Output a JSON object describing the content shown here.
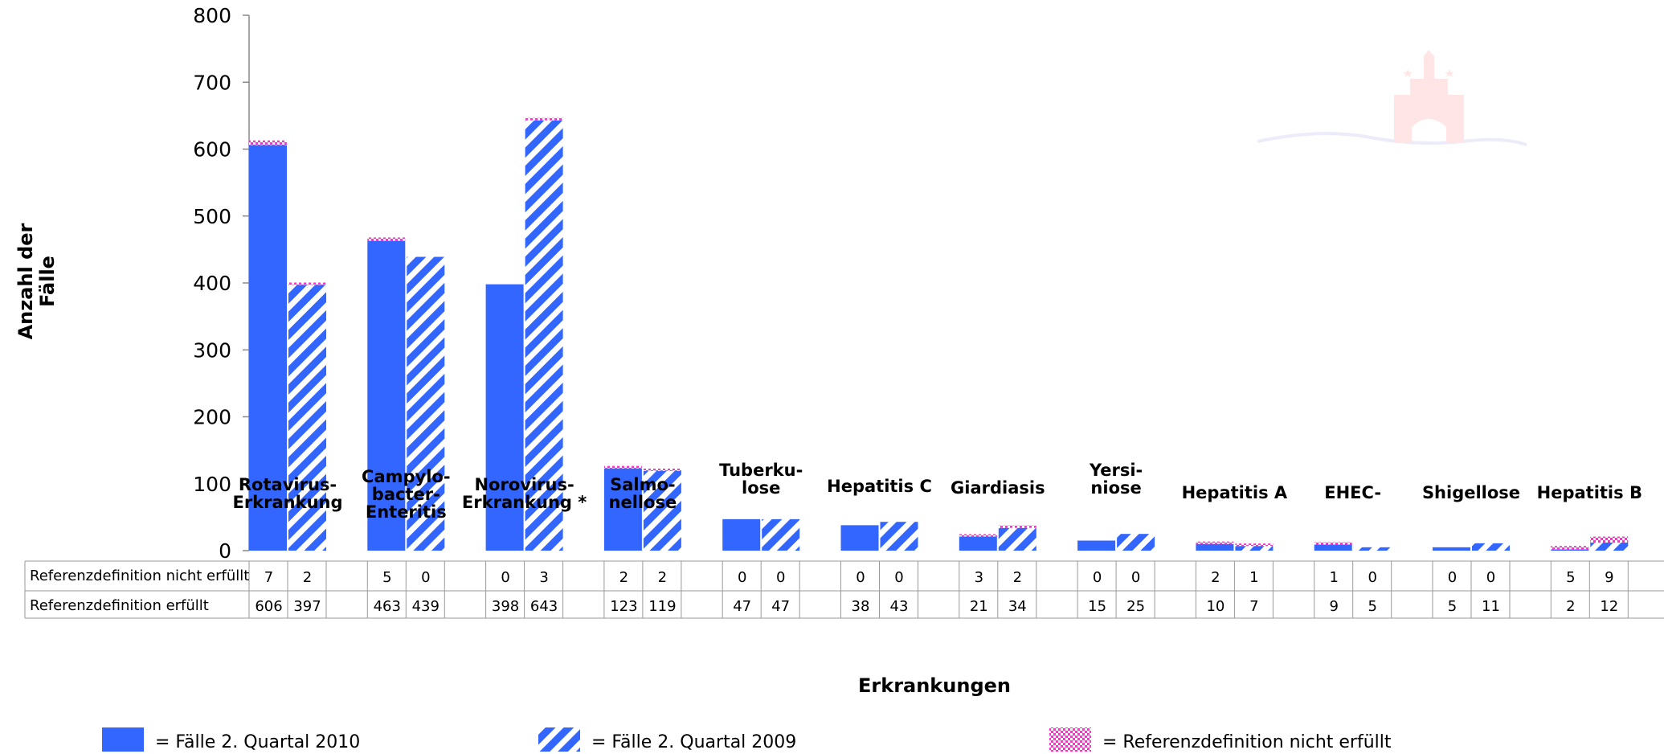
{
  "chart_data": {
    "type": "bar",
    "xlabel": "Erkrankungen",
    "ylabel": [
      "Anzahl der",
      "Fälle"
    ],
    "ylim": [
      0,
      800
    ],
    "yticks": [
      0,
      100,
      200,
      300,
      400,
      500,
      600,
      700,
      800
    ],
    "stacked": true,
    "categories": [
      {
        "label": [
          "Rotavirus-",
          "Erkrankung"
        ]
      },
      {
        "label": [
          "Campylo-",
          "bacter-",
          "Enteritis"
        ]
      },
      {
        "label": [
          "Norovirus-",
          "Erkrankung *"
        ]
      },
      {
        "label": [
          "Salmo-",
          "nellose"
        ]
      },
      {
        "label": [
          "Tuberku-",
          "lose"
        ]
      },
      {
        "label": [
          "Hepatitis C"
        ]
      },
      {
        "label": [
          "Giardiasis"
        ]
      },
      {
        "label": [
          "Yersi-",
          "niose"
        ]
      },
      {
        "label": [
          "Hepatitis A"
        ]
      },
      {
        "label": [
          "EHEC-"
        ]
      },
      {
        "label": [
          "Shigellose"
        ]
      },
      {
        "label": [
          "Hepatitis B"
        ]
      }
    ],
    "series": [
      {
        "name": "Fälle 2. Quartal 2010",
        "style": "solid",
        "color": "#3366ff",
        "erfuellt": [
          606,
          463,
          398,
          123,
          47,
          38,
          21,
          15,
          10,
          9,
          5,
          2
        ],
        "nicht_erfuellt": [
          7,
          5,
          0,
          2,
          0,
          0,
          3,
          0,
          2,
          1,
          0,
          5
        ]
      },
      {
        "name": "Fälle 2. Quartal 2009",
        "style": "hatched",
        "color": "#3366ff",
        "erfuellt": [
          397,
          439,
          643,
          119,
          47,
          43,
          34,
          25,
          7,
          5,
          11,
          12
        ],
        "nicht_erfuellt": [
          2,
          0,
          3,
          2,
          0,
          0,
          2,
          0,
          1,
          0,
          0,
          9
        ]
      }
    ],
    "overlay_color": "#ff33cc",
    "table": {
      "row_labels": [
        "Referenzdefinition  nicht erfüllt",
        "Referenzdefinition erfüllt"
      ]
    }
  },
  "legend": {
    "items": [
      {
        "text": "= Fälle 2. Quartal 2010",
        "style": "solid"
      },
      {
        "text": "= Fälle 2. Quartal 2009",
        "style": "hatched"
      },
      {
        "text": "= Referenzdefinition nicht erfüllt",
        "style": "pink"
      }
    ]
  }
}
